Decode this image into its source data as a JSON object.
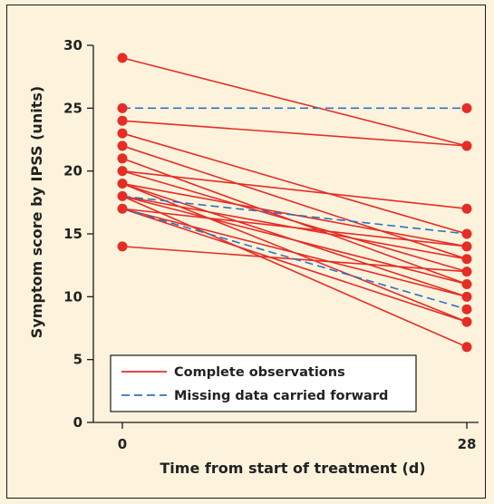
{
  "chart_data": {
    "type": "line",
    "xlabel": "Time from start of treatment (d)",
    "ylabel": "Symptom score by IPSS (units)",
    "x_ticks": [
      0,
      28
    ],
    "y_ticks": [
      0,
      5,
      10,
      15,
      20,
      25,
      30
    ],
    "xlim": [
      0,
      28
    ],
    "ylim": [
      0,
      30
    ],
    "grid": false,
    "legend_position": "bottom-left",
    "colors": {
      "complete": "#e52d26",
      "missing": "#2a74c4"
    },
    "legend": [
      {
        "key": "complete",
        "label": "Complete observations"
      },
      {
        "key": "missing",
        "label": "Missing data carried forward"
      }
    ],
    "series": [
      {
        "kind": "complete",
        "values": [
          29,
          22
        ]
      },
      {
        "kind": "complete",
        "values": [
          24,
          22
        ]
      },
      {
        "kind": "complete",
        "values": [
          23,
          15
        ]
      },
      {
        "kind": "complete",
        "values": [
          22,
          13
        ]
      },
      {
        "kind": "complete",
        "values": [
          21,
          11
        ]
      },
      {
        "kind": "complete",
        "values": [
          20,
          17
        ]
      },
      {
        "kind": "complete",
        "values": [
          20,
          12
        ]
      },
      {
        "kind": "complete",
        "values": [
          19,
          14
        ]
      },
      {
        "kind": "complete",
        "values": [
          19,
          10
        ]
      },
      {
        "kind": "complete",
        "values": [
          19,
          8
        ]
      },
      {
        "kind": "complete",
        "values": [
          18,
          13
        ]
      },
      {
        "kind": "complete",
        "values": [
          18,
          11
        ]
      },
      {
        "kind": "complete",
        "values": [
          18,
          6
        ]
      },
      {
        "kind": "complete",
        "values": [
          17,
          14
        ]
      },
      {
        "kind": "complete",
        "values": [
          17,
          10
        ]
      },
      {
        "kind": "complete",
        "values": [
          17,
          8
        ]
      },
      {
        "kind": "complete",
        "values": [
          14,
          12
        ]
      },
      {
        "kind": "missing",
        "values": [
          25,
          25
        ]
      },
      {
        "kind": "missing",
        "values": [
          18,
          15
        ]
      },
      {
        "kind": "missing",
        "values": [
          17,
          9
        ]
      }
    ]
  }
}
